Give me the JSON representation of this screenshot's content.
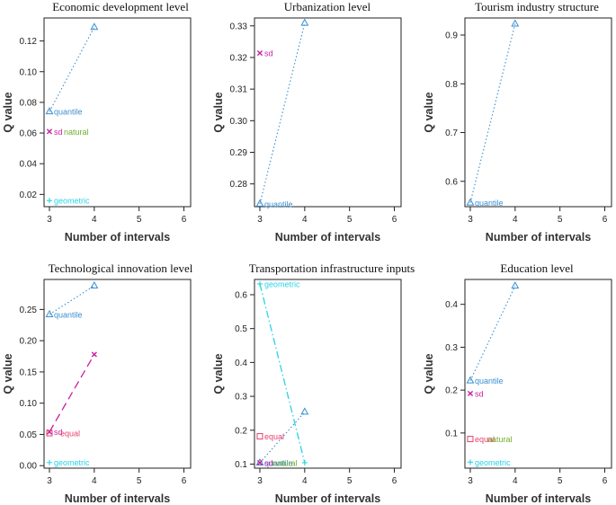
{
  "colors": {
    "quantile": "#3a8fd0",
    "sd": "#c71fa0",
    "natural": "#6fae2e",
    "geometric": "#29d3e6",
    "equal": "#e8416f"
  },
  "chart_data": [
    {
      "type": "line",
      "title": "Economic development level",
      "xlabel": "Number of intervals",
      "ylabel": "Q value",
      "xticks": [
        3,
        4,
        5,
        6
      ],
      "yticks": [
        0.02,
        0.04,
        0.06,
        0.08,
        0.1,
        0.12
      ],
      "ytick_labels": [
        "0.02",
        "0.04",
        "0.06",
        "0.08",
        "0.10",
        "0.12"
      ],
      "xlim": [
        2.88,
        6.15
      ],
      "ylim": [
        0.012,
        0.135
      ],
      "series": [
        {
          "name": "quantile",
          "marker": "triangle",
          "x": [
            3,
            4
          ],
          "y": [
            0.074,
            0.129
          ],
          "line": "dotted",
          "label_at": 0,
          "color_key": "quantile"
        },
        {
          "name": "sd",
          "marker": "cross",
          "x": [
            3
          ],
          "y": [
            0.061
          ],
          "label_at": 0,
          "color_key": "sd"
        },
        {
          "name": "natural",
          "marker": "none",
          "x": [
            3
          ],
          "y": [
            0.061
          ],
          "label_at": 0,
          "label_dx": 11,
          "color_key": "natural"
        },
        {
          "name": "geometric",
          "marker": "plus",
          "x": [
            3
          ],
          "y": [
            0.016
          ],
          "label_at": 0,
          "color_key": "geometric"
        }
      ]
    },
    {
      "type": "line",
      "title": "Urbanization level",
      "xlabel": "Number of intervals",
      "ylabel": "Q value",
      "xticks": [
        3,
        4,
        5,
        6
      ],
      "yticks": [
        0.28,
        0.29,
        0.3,
        0.31,
        0.32,
        0.33
      ],
      "ytick_labels": [
        "0.28",
        "0.29",
        "0.30",
        "0.31",
        "0.32",
        "0.33"
      ],
      "xlim": [
        2.88,
        6.15
      ],
      "ylim": [
        0.2728,
        0.3325
      ],
      "series": [
        {
          "name": "quantile",
          "marker": "triangle",
          "x": [
            3,
            4
          ],
          "y": [
            0.2737,
            0.3309
          ],
          "line": "dotted",
          "label_at": 0,
          "color_key": "quantile"
        },
        {
          "name": "sd",
          "marker": "cross",
          "x": [
            3
          ],
          "y": [
            0.3214
          ],
          "label_at": 0,
          "color_key": "sd"
        }
      ]
    },
    {
      "type": "line",
      "title": "Tourism industry structure",
      "xlabel": "Number of intervals",
      "ylabel": "Q value",
      "xticks": [
        3,
        4,
        5,
        6
      ],
      "yticks": [
        0.6,
        0.7,
        0.8,
        0.9
      ],
      "ytick_labels": [
        "0.6",
        "0.7",
        "0.8",
        "0.9"
      ],
      "xlim": [
        2.88,
        6.15
      ],
      "ylim": [
        0.548,
        0.935
      ],
      "series": [
        {
          "name": "quantile",
          "marker": "triangle",
          "x": [
            3,
            4
          ],
          "y": [
            0.556,
            0.923
          ],
          "line": "dotted",
          "label_at": 0,
          "color_key": "quantile"
        }
      ]
    },
    {
      "type": "line",
      "title": "Technological innovation level",
      "xlabel": "Number of intervals",
      "ylabel": "Q value",
      "xticks": [
        3,
        4,
        5,
        6
      ],
      "yticks": [
        0,
        0.05,
        0.1,
        0.15,
        0.2,
        0.25
      ],
      "ytick_labels": [
        "0.00",
        "0.05",
        "0.10",
        "0.15",
        "0.20",
        "0.25"
      ],
      "xlim": [
        2.88,
        6.15
      ],
      "ylim": [
        -0.004,
        0.298
      ],
      "series": [
        {
          "name": "quantile",
          "marker": "triangle",
          "x": [
            3,
            4
          ],
          "y": [
            0.242,
            0.288
          ],
          "line": "dotted",
          "label_at": 0,
          "color_key": "quantile"
        },
        {
          "name": "sd",
          "marker": "cross",
          "x": [
            3,
            4
          ],
          "y": [
            0.054,
            0.178
          ],
          "line": "dashed",
          "label_at": 0,
          "color_key": "sd"
        },
        {
          "name": "equal",
          "marker": "square",
          "x": [
            3
          ],
          "y": [
            0.052
          ],
          "label_at": 0,
          "label_dx": 7,
          "color_key": "equal"
        },
        {
          "name": "geometric",
          "marker": "plus",
          "x": [
            3
          ],
          "y": [
            0.005
          ],
          "label_at": 0,
          "color_key": "geometric"
        }
      ]
    },
    {
      "type": "line",
      "title": "Transportation infrastructure inputs",
      "xlabel": "Number of intervals",
      "ylabel": "Q value",
      "xticks": [
        3,
        4,
        5,
        6
      ],
      "yticks": [
        0.1,
        0.2,
        0.3,
        0.4,
        0.5,
        0.6
      ],
      "ytick_labels": [
        "0.1",
        "0.2",
        "0.3",
        "0.4",
        "0.5",
        "0.6"
      ],
      "xlim": [
        2.88,
        6.15
      ],
      "ylim": [
        0.088,
        0.645
      ],
      "series": [
        {
          "name": "geometric",
          "marker": "plus",
          "x": [
            3,
            4
          ],
          "y": [
            0.632,
            0.104
          ],
          "line": "dashdot",
          "label_at": 0,
          "color_key": "geometric"
        },
        {
          "name": "quantile",
          "marker": "triangle",
          "x": [
            3,
            4
          ],
          "y": [
            0.104,
            0.254
          ],
          "line": "dotted",
          "label_at": 0,
          "color_key": "quantile"
        },
        {
          "name": "equal",
          "marker": "square",
          "x": [
            3
          ],
          "y": [
            0.182
          ],
          "label_at": 0,
          "color_key": "equal"
        },
        {
          "name": "sd",
          "marker": "cross",
          "x": [
            3
          ],
          "y": [
            0.104
          ],
          "label_at": 0,
          "color_key": "sd"
        },
        {
          "name": "natural",
          "marker": "none",
          "x": [
            3
          ],
          "y": [
            0.104
          ],
          "label_at": 0,
          "label_dx": 9,
          "color_key": "natural"
        }
      ]
    },
    {
      "type": "line",
      "title": "Education level",
      "xlabel": "Number of intervals",
      "ylabel": "Q value",
      "xticks": [
        3,
        4,
        5,
        6
      ],
      "yticks": [
        0.1,
        0.2,
        0.3,
        0.4
      ],
      "ytick_labels": [
        "0.1",
        "0.2",
        "0.3",
        "0.4"
      ],
      "xlim": [
        2.88,
        6.15
      ],
      "ylim": [
        0.018,
        0.458
      ],
      "series": [
        {
          "name": "quantile",
          "marker": "triangle",
          "x": [
            3,
            4
          ],
          "y": [
            0.222,
            0.443
          ],
          "line": "dotted",
          "label_at": 0,
          "color_key": "quantile"
        },
        {
          "name": "sd",
          "marker": "cross",
          "x": [
            3
          ],
          "y": [
            0.192
          ],
          "label_at": 0,
          "color_key": "sd"
        },
        {
          "name": "equal",
          "marker": "square",
          "x": [
            3
          ],
          "y": [
            0.086
          ],
          "label_at": 0,
          "color_key": "equal"
        },
        {
          "name": "natural",
          "marker": "none",
          "x": [
            3
          ],
          "y": [
            0.086
          ],
          "label_at": 0,
          "label_dx": 14,
          "color_key": "natural"
        },
        {
          "name": "geometric",
          "marker": "plus",
          "x": [
            3
          ],
          "y": [
            0.032
          ],
          "label_at": 0,
          "color_key": "geometric"
        }
      ]
    }
  ]
}
